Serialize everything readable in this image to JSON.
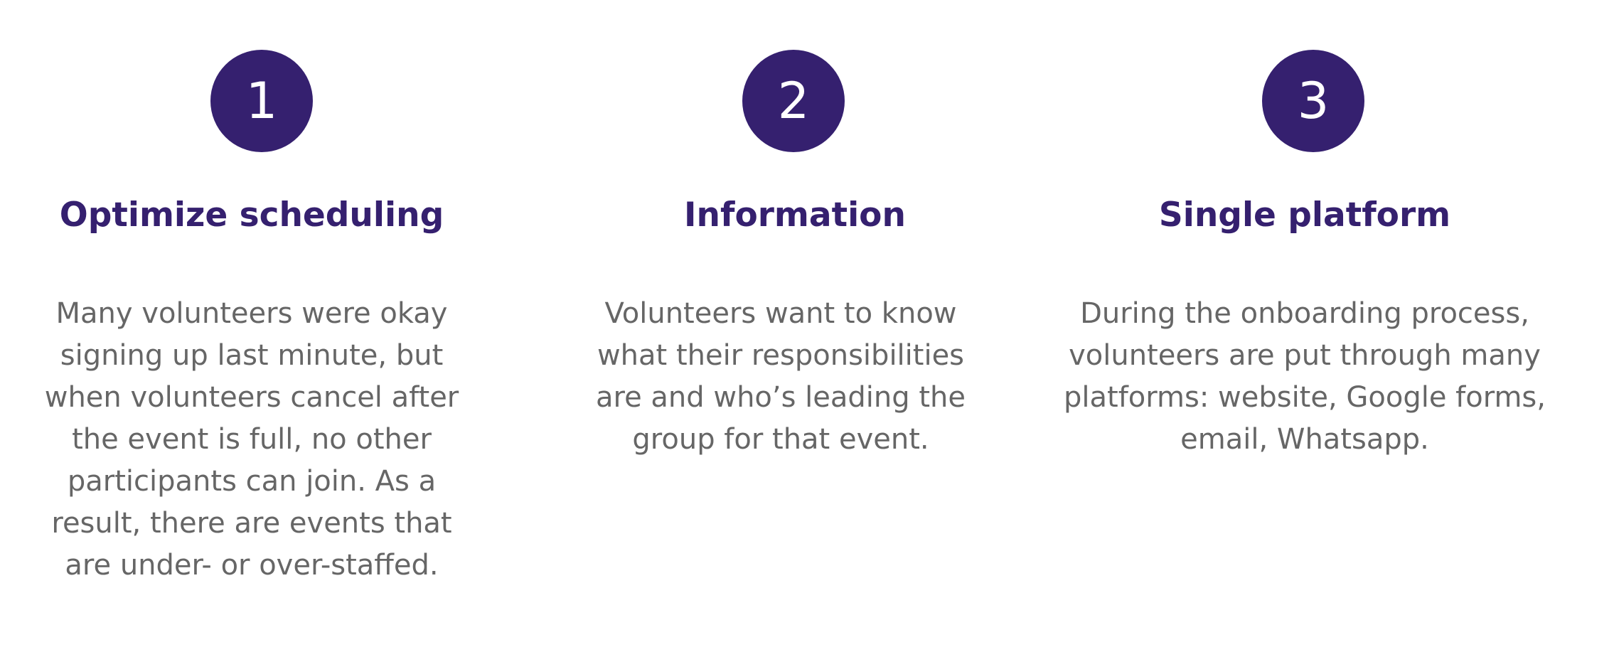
{
  "steps": [
    {
      "number": "1",
      "title": "Optimize scheduling",
      "lines": [
        "Many volunteers were okay",
        "signing up last minute, but",
        "when volunteers cancel after",
        "the event is full, no other",
        "participants can join. As a",
        "result, there are events that",
        "are under- or over-staffed."
      ]
    },
    {
      "number": "2",
      "title": "Information",
      "lines": [
        "Volunteers want to know",
        "what their responsibilities",
        "are and who’s leading the",
        "group for that event."
      ]
    },
    {
      "number": "3",
      "title": "Single platform",
      "lines": [
        "During the onboarding process,",
        "volunteers are put through many",
        "platforms: website, Google forms,",
        "email, Whatsapp."
      ]
    }
  ],
  "colors": {
    "accent": "#35206f",
    "body_text": "#666666",
    "background": "#ffffff"
  }
}
